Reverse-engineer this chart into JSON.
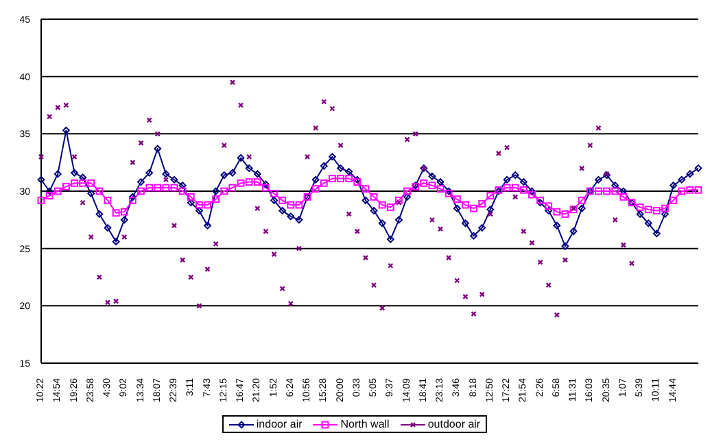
{
  "chart_data": {
    "type": "line",
    "categories": [
      "10:22",
      null,
      "14:54",
      null,
      "19:26",
      null,
      "23:58",
      null,
      "4:30",
      null,
      "9:02",
      null,
      "13:34",
      null,
      "18:07",
      null,
      "22:39",
      null,
      "3:11",
      null,
      "7:43",
      null,
      "12:15",
      null,
      "16:47",
      null,
      "21:20",
      null,
      "1:52",
      null,
      "6:24",
      null,
      "10:56",
      null,
      "15:28",
      null,
      "20:00",
      null,
      "0:33",
      null,
      "5:05",
      null,
      "9:37",
      null,
      "14:09",
      null,
      "18:41",
      null,
      "23:13",
      null,
      "3:46",
      null,
      "8:18",
      null,
      "12:50",
      null,
      "17:22",
      null,
      "21:54",
      null,
      "2:26",
      null,
      "6:58",
      null,
      "11:31",
      null,
      "16:03",
      null,
      "20:35",
      null,
      "1:07",
      null,
      "5:39",
      null,
      "10:11",
      null,
      "14:44",
      null,
      null,
      null
    ],
    "series": [
      {
        "name": "indoor air",
        "color": "#000080",
        "marker": "diamond",
        "values": [
          31,
          30,
          31.5,
          35.3,
          31.6,
          31.2,
          29.8,
          28,
          26.8,
          25.6,
          27.5,
          29.5,
          30.8,
          31.6,
          33.7,
          31.5,
          31,
          30.5,
          29,
          28.3,
          27,
          30,
          31.4,
          31.6,
          32.9,
          32,
          31.5,
          30.6,
          29.2,
          28.3,
          27.8,
          27.5,
          29.5,
          31,
          32.2,
          33,
          32,
          31.7,
          31,
          29.2,
          28.3,
          27.2,
          25.8,
          27.5,
          29.5,
          30.5,
          32,
          31.3,
          30.8,
          30,
          28.5,
          27.2,
          26.1,
          26.8,
          28.4,
          30,
          31,
          31.4,
          30.8,
          30,
          29,
          28.3,
          27,
          25.2,
          26.5,
          28.5,
          30,
          31,
          31.4,
          30.5,
          30,
          29,
          28,
          27.2,
          26.3,
          28,
          30.5,
          31,
          31.5,
          32
        ]
      },
      {
        "name": "North wall",
        "color": "#ff00ff",
        "marker": "square",
        "values": [
          29.2,
          29.6,
          30,
          30.4,
          30.7,
          30.7,
          30.7,
          30,
          29.2,
          28.1,
          28.2,
          29.2,
          30,
          30.3,
          30.3,
          30.3,
          30.3,
          30,
          29.5,
          28.8,
          28.8,
          29.3,
          30,
          30.3,
          30.7,
          30.8,
          30.8,
          30.3,
          29.8,
          29.2,
          28.8,
          28.8,
          29.5,
          30.2,
          30.7,
          31.1,
          31.1,
          31.1,
          30.8,
          30.2,
          29.5,
          28.8,
          28.6,
          29.2,
          30,
          30.4,
          30.7,
          30.5,
          30.2,
          29.8,
          29.3,
          28.8,
          28.5,
          28.9,
          29.6,
          30.1,
          30.3,
          30.3,
          30.1,
          29.7,
          29.2,
          28.7,
          28.2,
          28,
          28.4,
          29.2,
          30,
          30,
          30,
          30,
          29.5,
          29,
          28.6,
          28.4,
          28.3,
          28.5,
          29.2,
          30,
          30.1,
          30.1
        ]
      },
      {
        "name": "outdoor air",
        "color": "#800080",
        "type": "scatter",
        "marker": "cross",
        "values": [
          33,
          36.5,
          37.3,
          37.5,
          33,
          29,
          26,
          22.5,
          20.3,
          20.4,
          26,
          32.5,
          34.2,
          36.2,
          35,
          31,
          27,
          24,
          22.5,
          20,
          23.2,
          25.4,
          34,
          39.5,
          37.5,
          33,
          28.5,
          26.5,
          24.5,
          21.5,
          20.2,
          25,
          33,
          35.5,
          37.8,
          37.2,
          34,
          28,
          26.5,
          24.2,
          21.8,
          19.8,
          23.5,
          29,
          34.5,
          35,
          32,
          27.5,
          26.7,
          24.2,
          22.2,
          20.8,
          19.3,
          21,
          28,
          33.3,
          33.8,
          29.5,
          26.5,
          25.5,
          23.8,
          21.8,
          19.2,
          24,
          28.5,
          32,
          34,
          35.5,
          31.5,
          27.5,
          25.3,
          23.7,
          null,
          null,
          null,
          null,
          null,
          null,
          null,
          null
        ]
      }
    ],
    "ylim": [
      15,
      45
    ],
    "yticks": [
      15,
      20,
      25,
      30,
      35,
      40,
      45
    ],
    "grid": "y",
    "legend": "bottom"
  }
}
